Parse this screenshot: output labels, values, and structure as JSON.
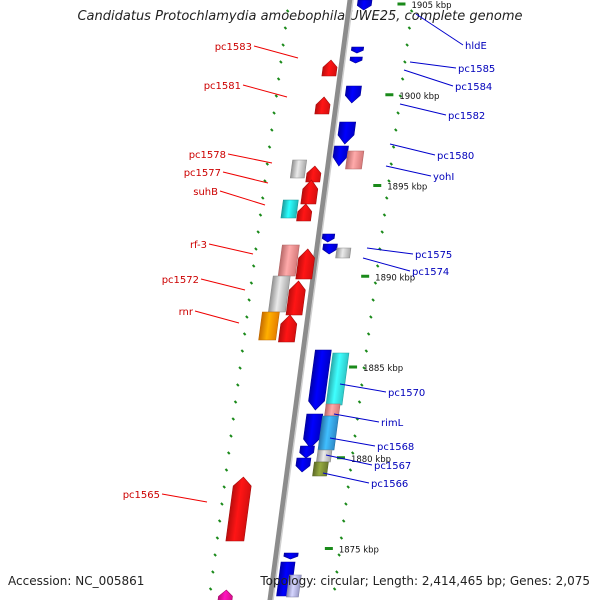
{
  "title": "Candidatus Protochlamydia amoebophila UWE25, complete genome",
  "footer": {
    "accession": "Accession: NC_005861",
    "summary": "Topology: circular; Length: 2,414,465 bp; Genes: 2,075"
  },
  "colors": {
    "backbone": "#8c8c8c",
    "tick": "#1a8a1a",
    "label_left": "#cc0000",
    "label_right": "#0000bb",
    "leader_left": "#ee0000",
    "leader_right": "#0000cc"
  },
  "ticks": [
    {
      "kbp": 1905,
      "label": "1905 kbp"
    },
    {
      "kbp": 1900,
      "label": "1900 kbp"
    },
    {
      "kbp": 1895,
      "label": "1895 kbp"
    },
    {
      "kbp": 1890,
      "label": "1890 kbp"
    },
    {
      "kbp": 1885,
      "label": "1885 kbp"
    },
    {
      "kbp": 1880,
      "label": "1880 kbp"
    },
    {
      "kbp": 1875,
      "label": "1875 kbp"
    }
  ],
  "genes_left": [
    {
      "name": "pc1583",
      "color": "#ee1111"
    },
    {
      "name": "pc1581",
      "color": "#ee1111"
    },
    {
      "name": "pc1578",
      "color": "#bbbbbb"
    },
    {
      "name": "pc1577",
      "color": "#ee1111"
    },
    {
      "name": "suhB",
      "color": "#22cccc"
    },
    {
      "name": "rf-3",
      "color": "#ee8888"
    },
    {
      "name": "pc1572",
      "color": "#bbbbbb"
    },
    {
      "name": "rnr",
      "color": "#ff8c00"
    },
    {
      "name": "pc1565",
      "color": "#ee1111"
    }
  ],
  "genes_right": [
    {
      "name": "hldE",
      "color": "#0000dd"
    },
    {
      "name": "pc1585",
      "color": "#0000dd"
    },
    {
      "name": "pc1584",
      "color": "#0000dd"
    },
    {
      "name": "pc1582",
      "color": "#0000dd"
    },
    {
      "name": "pc1580",
      "color": "#0000dd"
    },
    {
      "name": "yohI",
      "color": "#ee8888"
    },
    {
      "name": "pc1575",
      "color": "#0000dd"
    },
    {
      "name": "pc1574",
      "color": "#bbbbbb"
    },
    {
      "name": "pc1570",
      "color": "#33dddd"
    },
    {
      "name": "rimL",
      "color": "#ee8888"
    },
    {
      "name": "pc1568",
      "color": "#3399dd"
    },
    {
      "name": "pc1567",
      "color": "#bbbbbb"
    },
    {
      "name": "pc1566",
      "color": "#778833"
    }
  ]
}
